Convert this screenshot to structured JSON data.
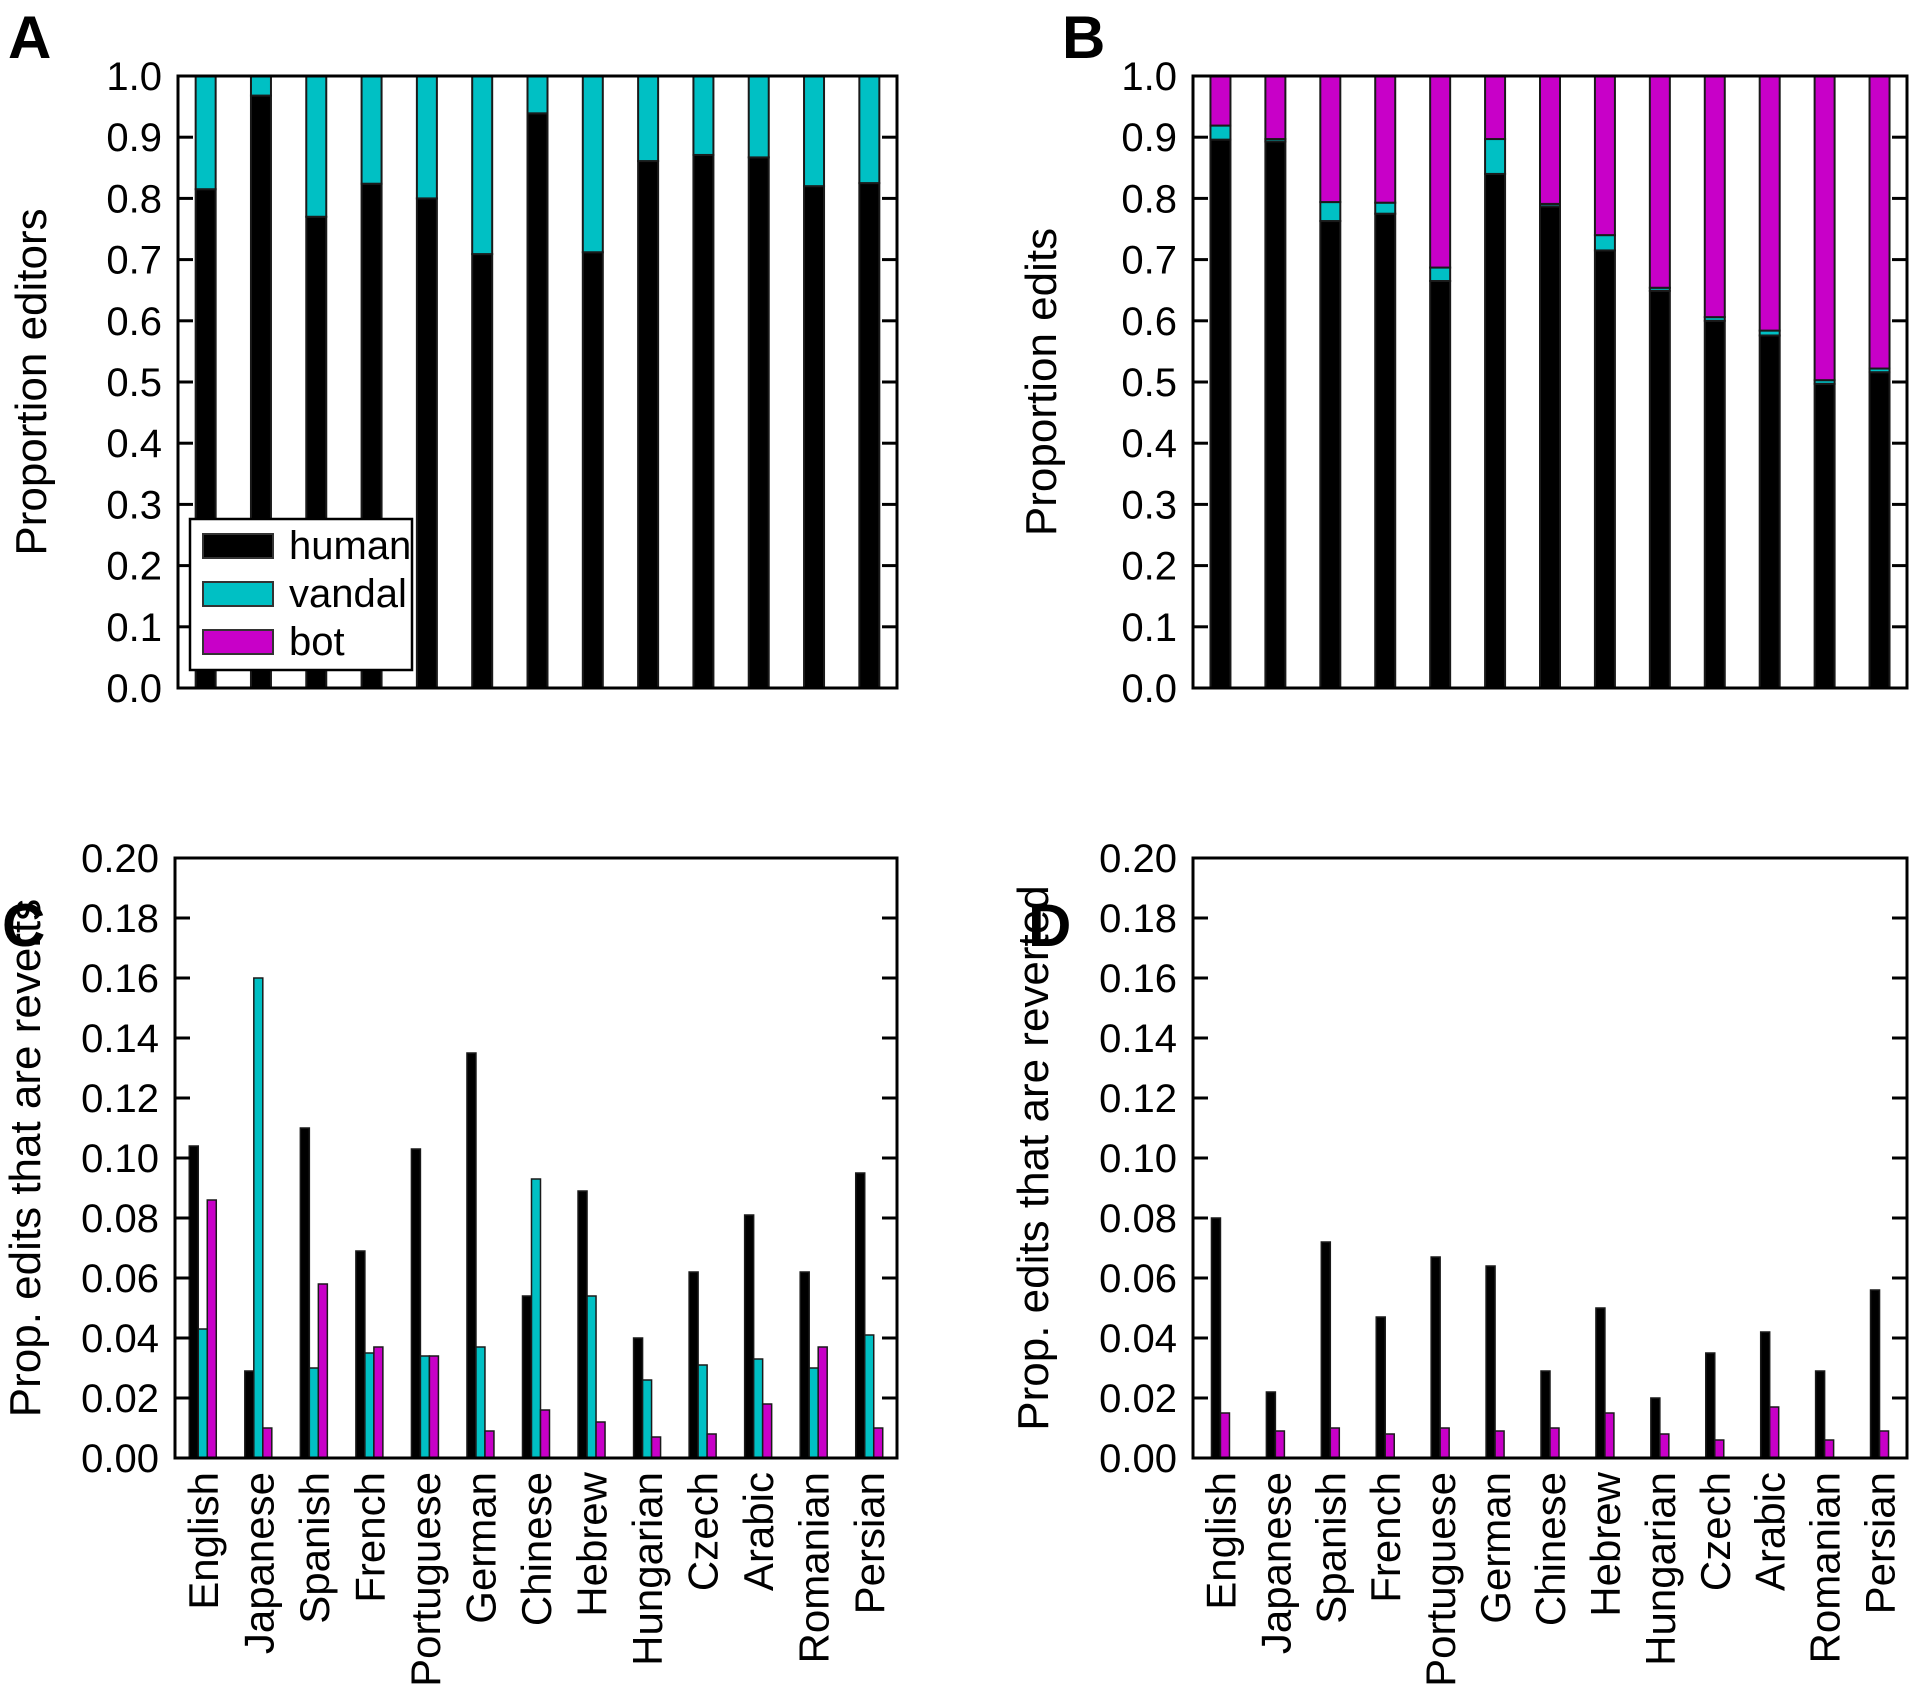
{
  "panel_labels": {
    "a": "A",
    "b": "B",
    "c": "C",
    "d": "D"
  },
  "categories": [
    "English",
    "Japanese",
    "Spanish",
    "French",
    "Portuguese",
    "German",
    "Chinese",
    "Hebrew",
    "Hungarian",
    "Czech",
    "Arabic",
    "Romanian",
    "Persian"
  ],
  "legend": {
    "items": [
      {
        "label": "human",
        "color": "#000000"
      },
      {
        "label": "vandal",
        "color": "#00C0C4"
      },
      {
        "label": "bot",
        "color": "#C800C8"
      }
    ]
  },
  "colors": {
    "human": "#000000",
    "vandal": "#00C0C4",
    "bot": "#C800C8",
    "axis": "#000000",
    "background": "#FFFFFF"
  },
  "chart_data": [
    {
      "panel": "A",
      "type": "bar",
      "subtype": "stacked",
      "ylabel": "Proportion editors",
      "ylim": [
        0.0,
        1.0
      ],
      "ytick_labels": [
        "0.0",
        "0.1",
        "0.2",
        "0.3",
        "0.4",
        "0.5",
        "0.6",
        "0.7",
        "0.8",
        "0.9",
        "1.0"
      ],
      "show_x_labels": false,
      "has_legend": true,
      "series": [
        {
          "name": "human",
          "values": [
            0.815,
            0.968,
            0.77,
            0.824,
            0.8,
            0.709,
            0.939,
            0.712,
            0.861,
            0.871,
            0.867,
            0.82,
            0.825
          ]
        },
        {
          "name": "vandal",
          "values": [
            0.185,
            0.032,
            0.23,
            0.176,
            0.2,
            0.291,
            0.061,
            0.288,
            0.139,
            0.129,
            0.133,
            0.18,
            0.175
          ]
        }
      ]
    },
    {
      "panel": "B",
      "type": "bar",
      "subtype": "stacked",
      "ylabel": "Proportion edits",
      "ylim": [
        0.0,
        1.0
      ],
      "ytick_labels": [
        "0.0",
        "0.1",
        "0.2",
        "0.3",
        "0.4",
        "0.5",
        "0.6",
        "0.7",
        "0.8",
        "0.9",
        "1.0"
      ],
      "show_x_labels": false,
      "has_legend": false,
      "series": [
        {
          "name": "human",
          "values": [
            0.896,
            0.893,
            0.763,
            0.775,
            0.665,
            0.84,
            0.787,
            0.715,
            0.649,
            0.6,
            0.576,
            0.497,
            0.516
          ]
        },
        {
          "name": "vandal",
          "values": [
            0.023,
            0.004,
            0.031,
            0.018,
            0.022,
            0.057,
            0.004,
            0.025,
            0.005,
            0.006,
            0.008,
            0.006,
            0.006
          ]
        },
        {
          "name": "bot",
          "values": [
            0.081,
            0.103,
            0.206,
            0.207,
            0.313,
            0.103,
            0.209,
            0.26,
            0.346,
            0.394,
            0.416,
            0.497,
            0.478
          ]
        }
      ]
    },
    {
      "panel": "C",
      "type": "bar",
      "subtype": "grouped",
      "ylabel": "Prop. edits that are reverts",
      "ylim": [
        0.0,
        0.2
      ],
      "ytick_labels": [
        "0.00",
        "0.02",
        "0.04",
        "0.06",
        "0.08",
        "0.10",
        "0.12",
        "0.14",
        "0.16",
        "0.18",
        "0.20"
      ],
      "show_x_labels": true,
      "has_legend": false,
      "series": [
        {
          "name": "human",
          "values": [
            0.104,
            0.029,
            0.11,
            0.069,
            0.103,
            0.135,
            0.054,
            0.089,
            0.04,
            0.062,
            0.081,
            0.062,
            0.095
          ]
        },
        {
          "name": "vandal",
          "values": [
            0.043,
            0.16,
            0.03,
            0.035,
            0.034,
            0.037,
            0.093,
            0.054,
            0.026,
            0.031,
            0.033,
            0.03,
            0.041
          ]
        },
        {
          "name": "bot",
          "values": [
            0.086,
            0.01,
            0.058,
            0.037,
            0.034,
            0.009,
            0.016,
            0.012,
            0.007,
            0.008,
            0.018,
            0.037,
            0.01
          ]
        }
      ]
    },
    {
      "panel": "D",
      "type": "bar",
      "subtype": "grouped",
      "ylabel": "Prop. edits that are reverted",
      "ylim": [
        0.0,
        0.2
      ],
      "ytick_labels": [
        "0.00",
        "0.02",
        "0.04",
        "0.06",
        "0.08",
        "0.10",
        "0.12",
        "0.14",
        "0.16",
        "0.18",
        "0.20"
      ],
      "show_x_labels": true,
      "has_legend": false,
      "series": [
        {
          "name": "human",
          "values": [
            0.08,
            0.022,
            0.072,
            0.047,
            0.067,
            0.064,
            0.029,
            0.05,
            0.02,
            0.035,
            0.042,
            0.029,
            0.056
          ]
        },
        {
          "name": "bot",
          "values": [
            0.015,
            0.009,
            0.01,
            0.008,
            0.01,
            0.009,
            0.01,
            0.015,
            0.008,
            0.006,
            0.017,
            0.006,
            0.009
          ]
        }
      ]
    }
  ]
}
